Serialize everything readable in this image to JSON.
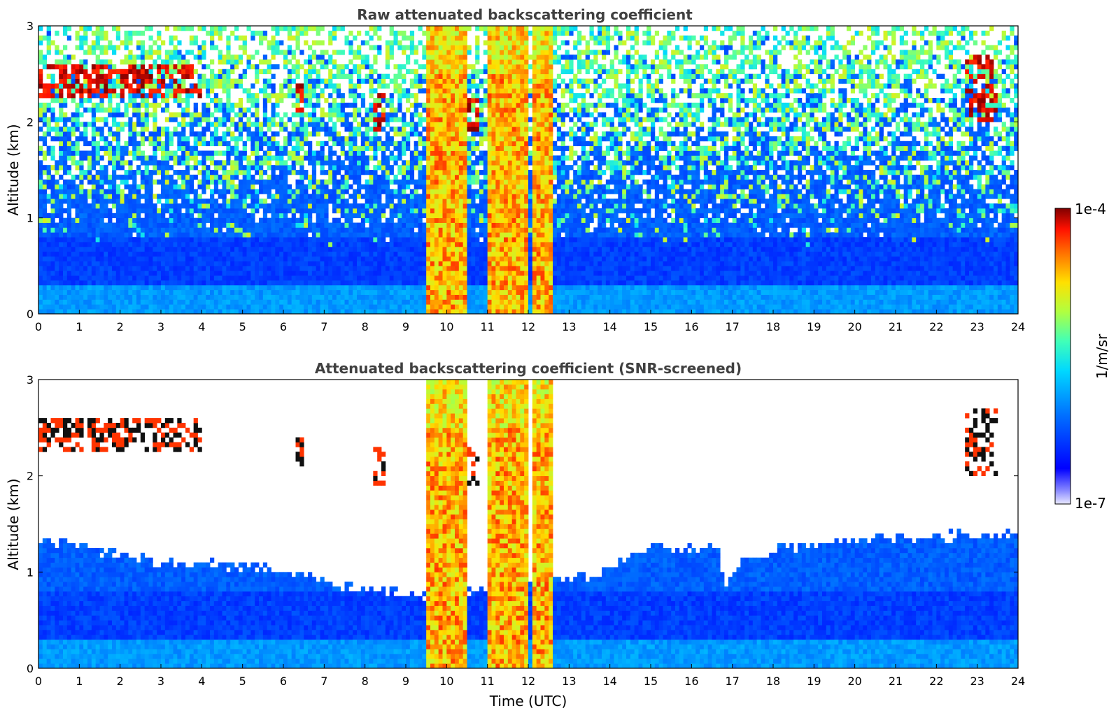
{
  "chart_data": [
    {
      "type": "heatmap",
      "title": "Raw attenuated backscattering coefficient",
      "xlabel": "",
      "ylabel": "Altitude (km)",
      "xlim": [
        0,
        24
      ],
      "ylim": [
        0,
        3
      ],
      "xticks": [
        "0",
        "1",
        "2",
        "3",
        "4",
        "5",
        "6",
        "7",
        "8",
        "9",
        "10",
        "11",
        "12",
        "13",
        "14",
        "15",
        "16",
        "17",
        "18",
        "19",
        "20",
        "21",
        "22",
        "23",
        "24"
      ],
      "yticks": [
        "0",
        "1",
        "2",
        "3"
      ],
      "screened": false,
      "precipitation_bands_utc": [
        [
          9.5,
          10.5
        ],
        [
          11.0,
          12.0
        ],
        [
          12.1,
          12.6
        ]
      ],
      "cloud_patches": [
        {
          "t": [
            0.0,
            4.0
          ],
          "alt_km": [
            2.25,
            2.6
          ]
        },
        {
          "t": [
            6.3,
            6.5
          ],
          "alt_km": [
            2.1,
            2.4
          ]
        },
        {
          "t": [
            8.2,
            8.5
          ],
          "alt_km": [
            1.9,
            2.3
          ]
        },
        {
          "t": [
            10.3,
            10.8
          ],
          "alt_km": [
            1.9,
            2.3
          ]
        },
        {
          "t": [
            22.7,
            23.5
          ],
          "alt_km": [
            2.0,
            2.7
          ]
        }
      ],
      "noise_level_km": 1.0
    },
    {
      "type": "heatmap",
      "title": "Attenuated backscattering coefficient (SNR-screened)",
      "xlabel": "Time (UTC)",
      "ylabel": "Altitude (km)",
      "xlim": [
        0,
        24
      ],
      "ylim": [
        0,
        3
      ],
      "xticks": [
        "0",
        "1",
        "2",
        "3",
        "4",
        "5",
        "6",
        "7",
        "8",
        "9",
        "10",
        "11",
        "12",
        "13",
        "14",
        "15",
        "16",
        "17",
        "18",
        "19",
        "20",
        "21",
        "22",
        "23",
        "24"
      ],
      "yticks": [
        "0",
        "1",
        "2",
        "3"
      ],
      "screened": true,
      "precipitation_bands_utc": [
        [
          9.5,
          10.5
        ],
        [
          11.0,
          12.0
        ],
        [
          12.1,
          12.6
        ]
      ],
      "cloud_patches": [
        {
          "t": [
            0.0,
            4.0
          ],
          "alt_km": [
            2.25,
            2.6
          ]
        },
        {
          "t": [
            6.3,
            6.5
          ],
          "alt_km": [
            2.1,
            2.4
          ]
        },
        {
          "t": [
            8.2,
            8.5
          ],
          "alt_km": [
            1.9,
            2.3
          ]
        },
        {
          "t": [
            10.3,
            10.8
          ],
          "alt_km": [
            1.9,
            2.3
          ]
        },
        {
          "t": [
            22.7,
            23.5
          ],
          "alt_km": [
            2.0,
            2.7
          ]
        }
      ],
      "boundary_layer_top_km": [
        [
          0,
          1.35
        ],
        [
          3,
          1.1
        ],
        [
          5.5,
          1.05
        ],
        [
          7.5,
          0.85
        ],
        [
          9.3,
          0.75
        ],
        [
          13.5,
          0.95
        ],
        [
          15,
          1.25
        ],
        [
          16.7,
          1.25
        ],
        [
          16.8,
          0.8
        ],
        [
          17.3,
          1.15
        ],
        [
          19,
          1.3
        ],
        [
          21,
          1.35
        ],
        [
          24,
          1.4
        ]
      ]
    }
  ],
  "colorbar": {
    "label": "1/m/sr",
    "max_label": "1e-4",
    "min_label": "1e-7",
    "colormap": "jet"
  },
  "colors": {
    "background": "#ffffff",
    "title": "#404040",
    "axes": "#000000"
  }
}
